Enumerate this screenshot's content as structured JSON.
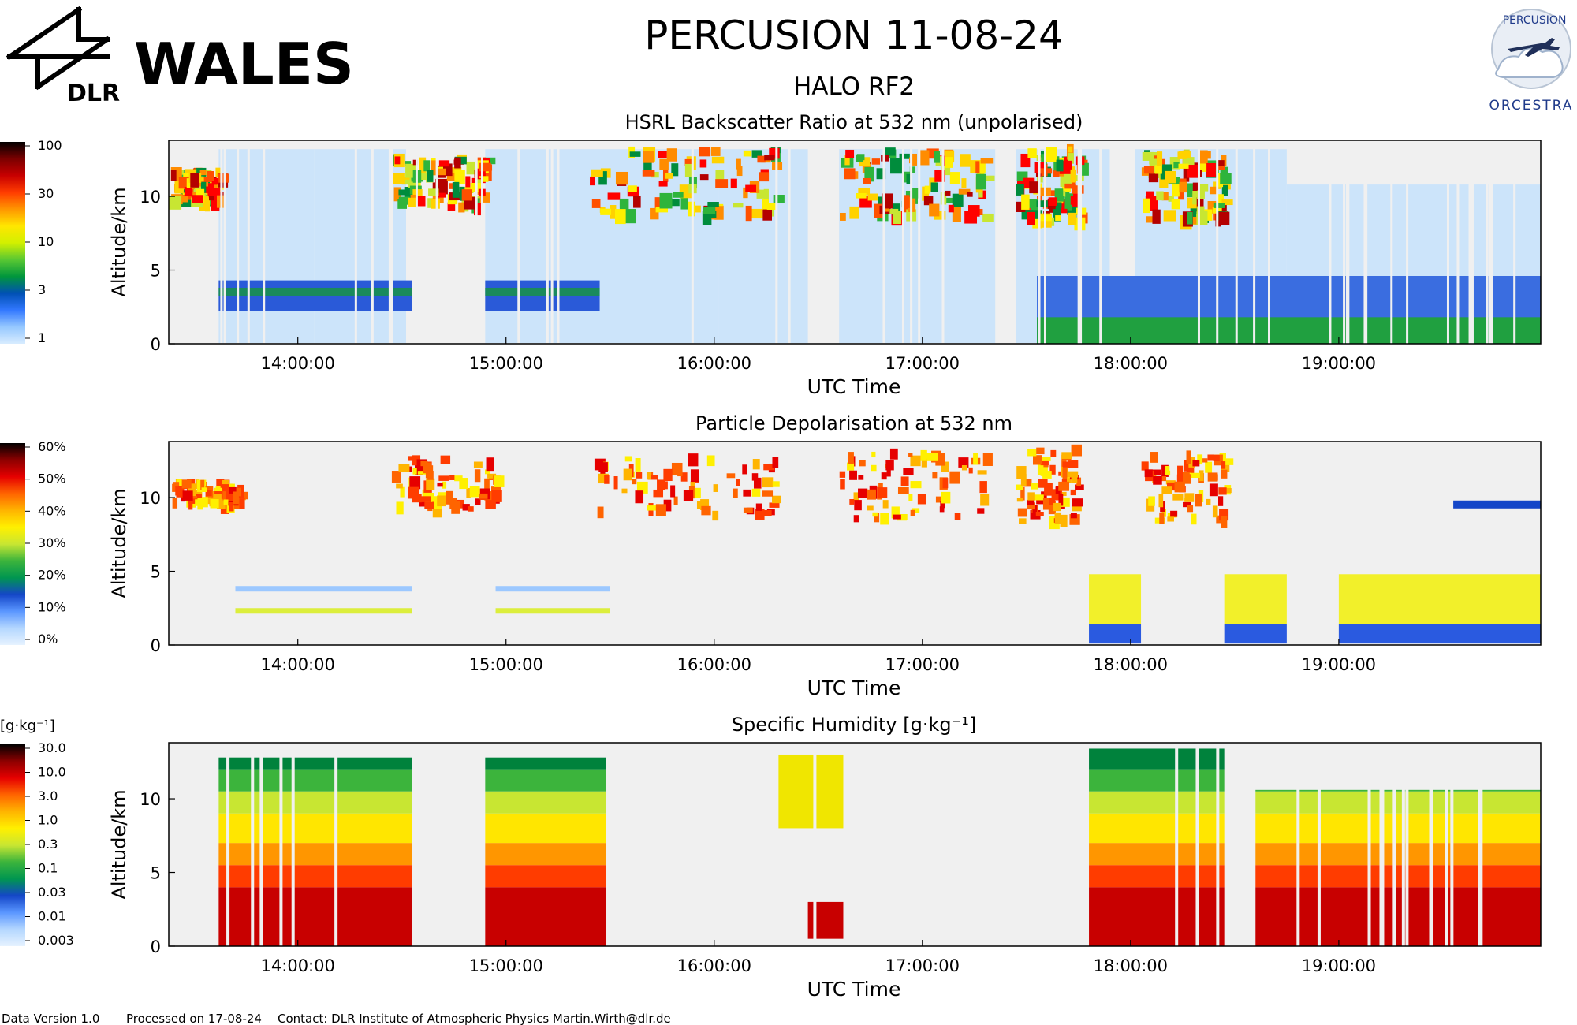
{
  "header": {
    "logo_left_text": "DLR",
    "instrument": "WALES",
    "title": "PERCUSION  11-08-24",
    "subtitle": "HALO RF2",
    "logo_right_top": "PERCUSION",
    "logo_right_bottom": "ORCESTRA"
  },
  "colors": {
    "background": "#ffffff",
    "plot_bg": "#f0f0f0",
    "sky_fill": "#cce4fa"
  },
  "colorbars": {
    "backscatter": {
      "unit": "",
      "labels": [
        "100",
        "30",
        "10",
        "3",
        "1"
      ],
      "stops": [
        "#000000",
        "#7a0000",
        "#c80000",
        "#ff3c00",
        "#ff9600",
        "#ffe600",
        "#d2f000",
        "#5ac832",
        "#00963c",
        "#0050b4",
        "#3278ff",
        "#96c8ff",
        "#d8ecff"
      ]
    },
    "depolarisation": {
      "unit": "",
      "labels": [
        "60%",
        "50%",
        "40%",
        "30%",
        "20%",
        "10%",
        "0%"
      ],
      "stops": [
        "#000000",
        "#8c0000",
        "#e60000",
        "#ff6400",
        "#ffb400",
        "#fff000",
        "#c8e632",
        "#3cb43c",
        "#009650",
        "#1446c8",
        "#5a96ff",
        "#b4d7ff",
        "#e6f2ff"
      ]
    },
    "humidity": {
      "unit": "[g·kg⁻¹]",
      "labels": [
        "30.0",
        "10.0",
        "3.0",
        "1.0",
        "0.3",
        "0.1",
        "0.03",
        "0.01",
        "0.003"
      ],
      "stops": [
        "#000000",
        "#8c0000",
        "#e60000",
        "#ff6400",
        "#ffb400",
        "#fff000",
        "#c8e632",
        "#3cb43c",
        "#009650",
        "#1446c8",
        "#5a96ff",
        "#b4d7ff",
        "#e6f2ff"
      ]
    }
  },
  "chart_data": [
    {
      "type": "heatmap",
      "title": "HSRL Backscatter Ratio at 532 nm (unpolarised)",
      "xlabel": "UTC Time",
      "ylabel": "Altitude/km",
      "xticks": [
        "14:00:00",
        "15:00:00",
        "16:00:00",
        "17:00:00",
        "18:00:00",
        "19:00:00"
      ],
      "yticks": [
        0,
        5,
        10
      ],
      "ylim": [
        0,
        13.8
      ],
      "xlim_hours": [
        13.38,
        19.97
      ],
      "colorbar_labels": [
        "100",
        "30",
        "10",
        "3",
        "1"
      ]
    },
    {
      "type": "heatmap",
      "title": "Particle Depolarisation at 532 nm",
      "xlabel": "UTC Time",
      "ylabel": "Altitude/km",
      "xticks": [
        "14:00:00",
        "15:00:00",
        "16:00:00",
        "17:00:00",
        "18:00:00",
        "19:00:00"
      ],
      "yticks": [
        0,
        5,
        10
      ],
      "ylim": [
        0,
        13.8
      ],
      "xlim_hours": [
        13.38,
        19.97
      ],
      "colorbar_labels": [
        "60%",
        "50%",
        "40%",
        "30%",
        "20%",
        "10%",
        "0%"
      ]
    },
    {
      "type": "heatmap",
      "title": "Specific Humidity [g·kg⁻¹]",
      "xlabel": "UTC Time",
      "ylabel": "Altitude/km",
      "xticks": [
        "14:00:00",
        "15:00:00",
        "16:00:00",
        "17:00:00",
        "18:00:00",
        "19:00:00"
      ],
      "yticks": [
        0,
        5,
        10
      ],
      "ylim": [
        0,
        13.8
      ],
      "xlim_hours": [
        13.38,
        19.97
      ],
      "colorbar_labels": [
        "30.0",
        "10.0",
        "3.0",
        "1.0",
        "0.3",
        "0.1",
        "0.03",
        "0.01",
        "0.003"
      ]
    }
  ],
  "footer": {
    "version": "Data Version 1.0",
    "processed": "Processed on 17-08-24",
    "contact": "Contact: DLR Institute of Atmospheric Physics  Martin.Wirth@dlr.de"
  }
}
